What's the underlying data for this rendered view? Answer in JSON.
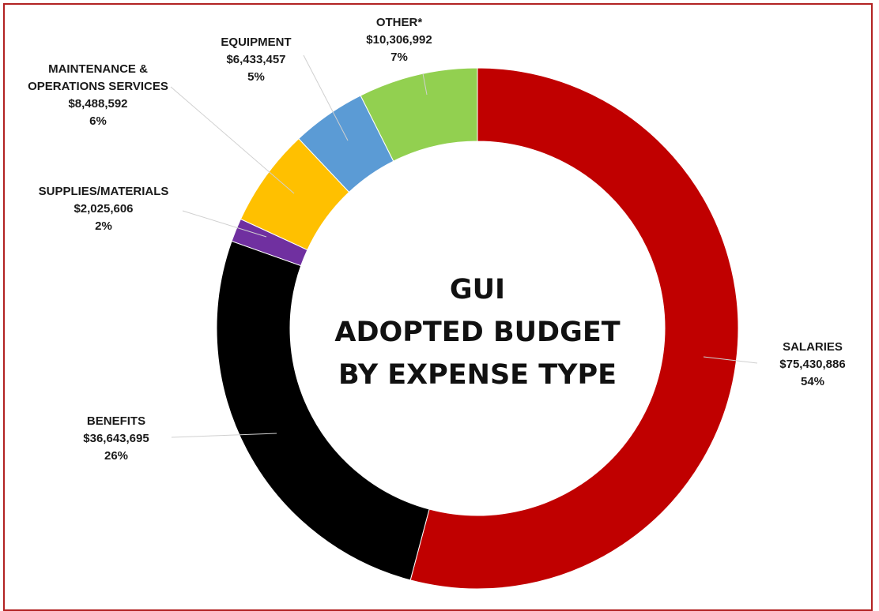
{
  "chart_data": {
    "type": "pie",
    "variant": "donut",
    "title_lines": [
      "GUI",
      "ADOPTED BUDGET",
      "BY EXPENSE TYPE"
    ],
    "slices": [
      {
        "key": "salaries",
        "label": "SALARIES",
        "value": 75430886,
        "value_text": "$75,430,886",
        "percent_text": "54%",
        "color": "#c00000"
      },
      {
        "key": "benefits",
        "label": "BENEFITS",
        "value": 36643695,
        "value_text": "$36,643,695",
        "percent_text": "26%",
        "color": "#000000"
      },
      {
        "key": "supplies",
        "label": "SUPPLIES/MATERIALS",
        "value": 2025606,
        "value_text": "$2,025,606",
        "percent_text": "2%",
        "color": "#7030a0"
      },
      {
        "key": "maintenance",
        "label": "MAINTENANCE & OPERATIONS SERVICES",
        "label_lines": [
          "MAINTENANCE &",
          "OPERATIONS SERVICES"
        ],
        "value": 8488592,
        "value_text": "$8,488,592",
        "percent_text": "6%",
        "color": "#ffc000"
      },
      {
        "key": "equipment",
        "label": "EQUIPMENT",
        "value": 6433457,
        "value_text": "$6,433,457",
        "percent_text": "5%",
        "color": "#5b9bd5"
      },
      {
        "key": "other",
        "label": "OTHER*",
        "value": 10306992,
        "value_text": "$10,306,992",
        "percent_text": "7%",
        "color": "#92d050"
      }
    ],
    "start": "top",
    "direction": "clockwise",
    "legend": "none"
  }
}
